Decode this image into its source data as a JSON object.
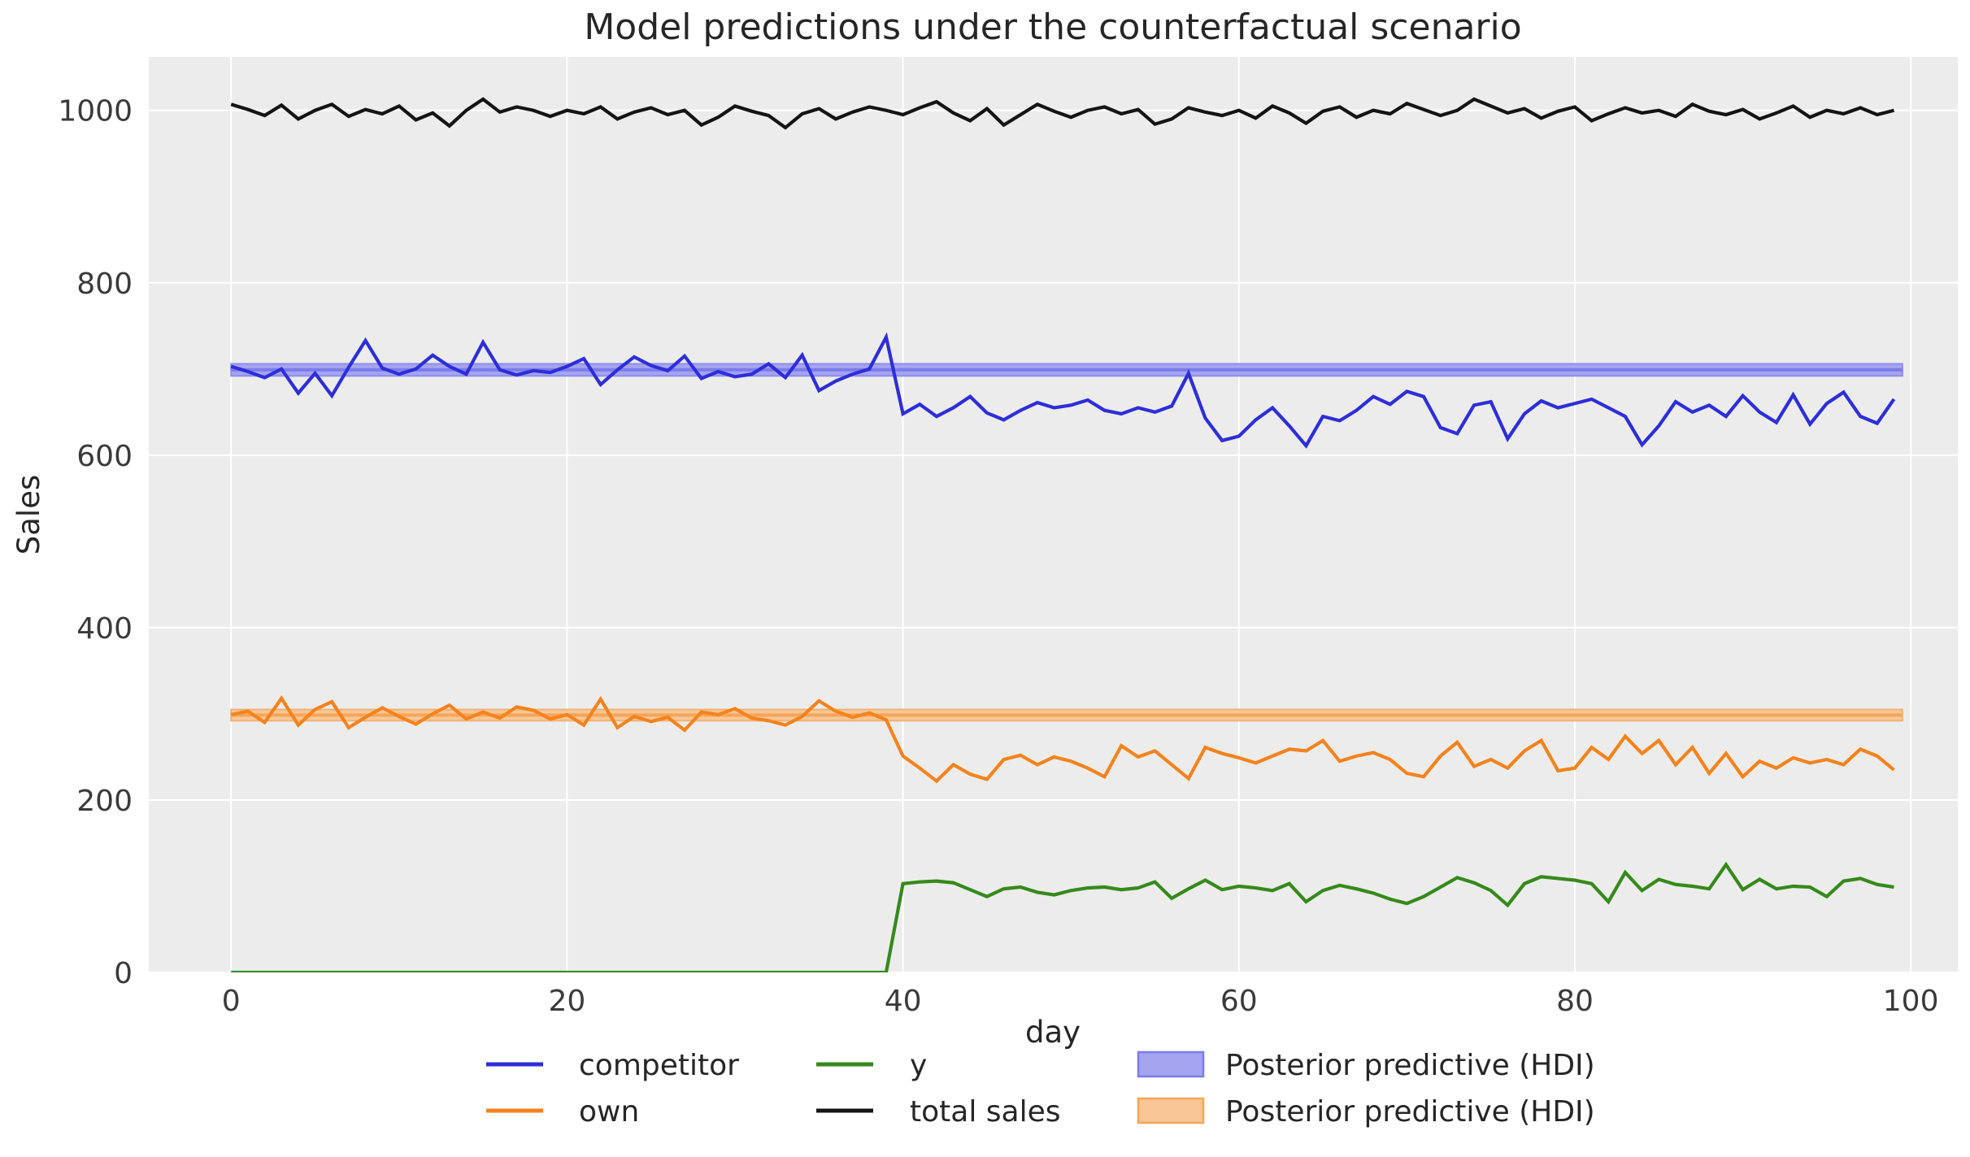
{
  "figure": {
    "background": "#ffffff"
  },
  "chart_data": {
    "type": "line",
    "title": "Model predictions under the counterfactual scenario",
    "xlabel": "day",
    "ylabel": "Sales",
    "xlim": [
      -4.9,
      102.8
    ],
    "ylim": [
      0,
      1062
    ],
    "x_ticks": [
      0,
      20,
      40,
      60,
      80,
      100
    ],
    "y_ticks": [
      0,
      200,
      400,
      600,
      800,
      1000
    ],
    "grid": true,
    "legend_position": "bottom",
    "plot_background": "#ececec",
    "grid_color": "#ffffff",
    "tick_label_color": "#3a3a3a",
    "text_color": "#262626",
    "x": [
      0,
      1,
      2,
      3,
      4,
      5,
      6,
      7,
      8,
      9,
      10,
      11,
      12,
      13,
      14,
      15,
      16,
      17,
      18,
      19,
      20,
      21,
      22,
      23,
      24,
      25,
      26,
      27,
      28,
      29,
      30,
      31,
      32,
      33,
      34,
      35,
      36,
      37,
      38,
      39,
      40,
      41,
      42,
      43,
      44,
      45,
      46,
      47,
      48,
      49,
      50,
      51,
      52,
      53,
      54,
      55,
      56,
      57,
      58,
      59,
      60,
      61,
      62,
      63,
      64,
      65,
      66,
      67,
      68,
      69,
      70,
      71,
      72,
      73,
      74,
      75,
      76,
      77,
      78,
      79,
      80,
      81,
      82,
      83,
      84,
      85,
      86,
      87,
      88,
      89,
      90,
      91,
      92,
      93,
      94,
      95,
      96,
      97,
      98,
      99
    ],
    "series": [
      {
        "name": "competitor",
        "color": "#2e2ed8",
        "values": [
          703,
          697,
          690,
          700,
          672,
          695,
          669,
          702,
          733,
          701,
          694,
          700,
          716,
          703,
          694,
          731,
          699,
          693,
          698,
          696,
          703,
          712,
          682,
          699,
          714,
          704,
          698,
          715,
          689,
          697,
          691,
          694,
          706,
          690,
          716,
          675,
          686,
          694,
          700,
          737,
          648,
          659,
          645,
          655,
          668,
          649,
          641,
          652,
          661,
          655,
          658,
          664,
          652,
          648,
          655,
          650,
          657,
          695,
          643,
          617,
          622,
          641,
          655,
          634,
          611,
          645,
          640,
          652,
          668,
          659,
          674,
          668,
          632,
          625,
          658,
          662,
          619,
          648,
          663,
          655,
          660,
          665,
          655,
          645,
          612,
          634,
          662,
          650,
          658,
          645,
          669,
          650,
          638,
          670,
          636,
          660,
          673,
          645,
          637,
          665
        ]
      },
      {
        "name": "own",
        "color": "#f5831d",
        "values": [
          299,
          303,
          290,
          318,
          287,
          305,
          314,
          284,
          296,
          307,
          297,
          288,
          300,
          310,
          294,
          302,
          295,
          308,
          304,
          294,
          299,
          287,
          317,
          284,
          297,
          291,
          296,
          281,
          302,
          299,
          306,
          295,
          292,
          287,
          297,
          315,
          303,
          296,
          301,
          293,
          251,
          237,
          222,
          241,
          230,
          224,
          247,
          252,
          241,
          250,
          245,
          237,
          227,
          263,
          250,
          257,
          241,
          225,
          261,
          254,
          249,
          243,
          251,
          259,
          257,
          269,
          245,
          251,
          255,
          247,
          231,
          227,
          251,
          267,
          239,
          247,
          237,
          257,
          269,
          234,
          237,
          261,
          247,
          274,
          254,
          269,
          241,
          261,
          231,
          254,
          227,
          245,
          237,
          249,
          243,
          247,
          241,
          259,
          251,
          235
        ]
      },
      {
        "name": "y",
        "color": "#36891b",
        "values": [
          0,
          0,
          0,
          0,
          0,
          0,
          0,
          0,
          0,
          0,
          0,
          0,
          0,
          0,
          0,
          0,
          0,
          0,
          0,
          0,
          0,
          0,
          0,
          0,
          0,
          0,
          0,
          0,
          0,
          0,
          0,
          0,
          0,
          0,
          0,
          0,
          0,
          0,
          0,
          0,
          103,
          105,
          106,
          104,
          96,
          88,
          97,
          99,
          93,
          90,
          95,
          98,
          99,
          96,
          98,
          105,
          86,
          97,
          107,
          96,
          100,
          98,
          95,
          103,
          82,
          95,
          101,
          97,
          92,
          85,
          80,
          88,
          99,
          110,
          104,
          95,
          78,
          103,
          111,
          109,
          107,
          103,
          82,
          116,
          95,
          108,
          102,
          100,
          97,
          125,
          96,
          108,
          97,
          100,
          99,
          88,
          106,
          109,
          102,
          99
        ]
      },
      {
        "name": "total sales",
        "color": "#141414",
        "values": [
          1007,
          1001,
          994,
          1006,
          990,
          1000,
          1007,
          993,
          1001,
          996,
          1005,
          989,
          997,
          982,
          1000,
          1013,
          998,
          1004,
          1000,
          993,
          1000,
          996,
          1004,
          990,
          998,
          1003,
          995,
          1000,
          983,
          992,
          1005,
          999,
          994,
          980,
          996,
          1002,
          990,
          998,
          1004,
          1000,
          995,
          1003,
          1010,
          997,
          988,
          1002,
          983,
          995,
          1007,
          999,
          992,
          1000,
          1004,
          996,
          1001,
          984,
          990,
          1003,
          998,
          994,
          1000,
          991,
          1005,
          997,
          985,
          999,
          1004,
          992,
          1000,
          996,
          1008,
          1001,
          994,
          1000,
          1013,
          1005,
          997,
          1002,
          991,
          999,
          1004,
          988,
          996,
          1003,
          997,
          1000,
          993,
          1007,
          999,
          995,
          1001,
          990,
          997,
          1005,
          992,
          1000,
          996,
          1003,
          995,
          1000
        ]
      }
    ],
    "bands": [
      {
        "name": "Posterior predictive (HDI)",
        "series": "competitor",
        "x_start": 0,
        "x_end": 99.5,
        "lo": 692,
        "hi": 706,
        "median": 699,
        "fill": "#a4a4f0",
        "edge": "#8e8eea",
        "median_color": "#7c7cec"
      },
      {
        "name": "Posterior predictive (HDI)",
        "series": "own",
        "x_start": 0,
        "x_end": 99.5,
        "lo": 292,
        "hi": 305,
        "median": 298.5,
        "fill": "#f8c795",
        "edge": "#f0b277",
        "median_color": "#f5a55c"
      }
    ]
  },
  "legend": {
    "columns": [
      [
        {
          "label": "competitor",
          "marker": "line",
          "color": "#2e2ed8"
        },
        {
          "label": "own",
          "marker": "line",
          "color": "#f5831d"
        }
      ],
      [
        {
          "label": "y",
          "marker": "line",
          "color": "#36891b"
        },
        {
          "label": "total sales",
          "marker": "line",
          "color": "#141414"
        }
      ],
      [
        {
          "label": "Posterior predictive (HDI)",
          "marker": "patch",
          "fill": "#a4a4f0",
          "edge": "#7c7cec"
        },
        {
          "label": "Posterior predictive (HDI)",
          "marker": "patch",
          "fill": "#f8c795",
          "edge": "#f5a55c"
        }
      ]
    ]
  }
}
